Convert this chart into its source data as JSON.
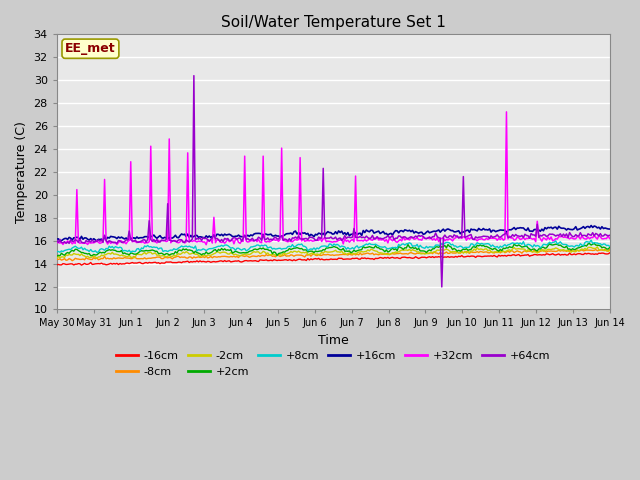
{
  "title": "Soil/Water Temperature Set 1",
  "xlabel": "Time",
  "ylabel": "Temperature (C)",
  "ylim": [
    10,
    34
  ],
  "yticks": [
    10,
    12,
    14,
    16,
    18,
    20,
    22,
    24,
    26,
    28,
    30,
    32,
    34
  ],
  "annotation": "EE_met",
  "annotation_color": "#8B0000",
  "annotation_bg": "#FFFFCC",
  "annotation_edge": "#999900",
  "fig_facecolor": "#CCCCCC",
  "ax_facecolor": "#E8E8E8",
  "grid_color": "#FFFFFF",
  "series": [
    {
      "label": "-16cm",
      "color": "#FF0000"
    },
    {
      "label": "-8cm",
      "color": "#FF8C00"
    },
    {
      "label": "-2cm",
      "color": "#CCCC00"
    },
    {
      "label": "+2cm",
      "color": "#00AA00"
    },
    {
      "label": "+8cm",
      "color": "#00CCCC"
    },
    {
      "label": "+16cm",
      "color": "#000099"
    },
    {
      "label": "+32cm",
      "color": "#FF00FF"
    },
    {
      "label": "+64cm",
      "color": "#9900CC"
    }
  ],
  "xtick_labels": [
    "May 30",
    "May 31",
    "Jun 1",
    "Jun 2",
    "Jun 3",
    "Jun 4",
    "Jun 5",
    "Jun 6",
    "Jun 7",
    "Jun 8",
    "Jun 9",
    "Jun 10",
    "Jun 11",
    "Jun 12",
    "Jun 13",
    "Jun 14"
  ]
}
